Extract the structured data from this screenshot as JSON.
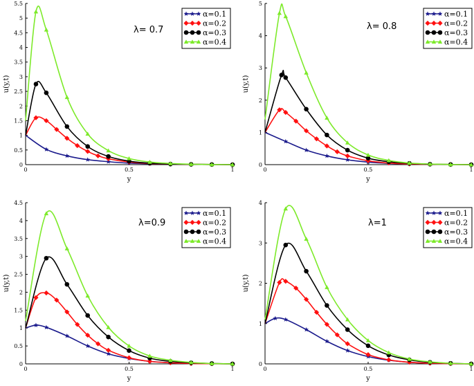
{
  "alpha_prefix": "α=",
  "series_names": [
    "α=0.1",
    "α=0.2",
    "α=0.3",
    "α=0.4"
  ],
  "series_colors": [
    "#1a1a8c",
    "#ff1010",
    "#000000",
    "#7dea2a"
  ],
  "marker_types": [
    "star",
    "diamond",
    "circle",
    "triangle"
  ],
  "chart_data": [
    {
      "type": "line",
      "title": "λ= 0.7",
      "xlabel": "y",
      "ylabel": "u(y,t)",
      "xlim": [
        0,
        1
      ],
      "ylim": [
        0,
        5.5
      ],
      "xticks": [
        "0",
        "0.5",
        "1"
      ],
      "yticks": [
        "0",
        "0.5",
        "1",
        "1.5",
        "2",
        "2.5",
        "3",
        "3.5",
        "4",
        "4.5",
        "5",
        "5.5"
      ],
      "legend_position": "top-right",
      "series": [
        {
          "name": "α=0.1",
          "x": [
            0,
            0.1,
            0.2,
            0.3,
            0.4,
            0.5,
            0.6,
            0.7,
            0.8,
            0.9,
            1.0
          ],
          "y": [
            1.0,
            0.52,
            0.3,
            0.17,
            0.1,
            0.05,
            0.03,
            0.015,
            0.01,
            0.005,
            0.0
          ]
        },
        {
          "name": "α=0.2",
          "x": [
            0,
            0.05,
            0.1,
            0.15,
            0.2,
            0.25,
            0.3,
            0.35,
            0.4,
            0.5,
            0.6,
            0.7,
            0.8,
            0.9,
            1.0
          ],
          "y": [
            1.0,
            1.6,
            1.5,
            1.2,
            0.9,
            0.65,
            0.45,
            0.3,
            0.2,
            0.09,
            0.04,
            0.02,
            0.01,
            0.005,
            0.0
          ]
        },
        {
          "name": "α=0.3",
          "x": [
            0,
            0.05,
            0.1,
            0.2,
            0.3,
            0.4,
            0.5,
            0.6,
            0.7,
            0.8,
            0.9,
            1.0
          ],
          "y": [
            1.0,
            2.75,
            2.45,
            1.3,
            0.62,
            0.28,
            0.12,
            0.05,
            0.02,
            0.01,
            0.005,
            0.0
          ]
        },
        {
          "name": "α=0.4",
          "x": [
            0,
            0.05,
            0.1,
            0.2,
            0.3,
            0.4,
            0.5,
            0.6,
            0.7,
            0.8,
            0.9,
            1.0
          ],
          "y": [
            1.5,
            5.22,
            4.6,
            2.3,
            1.05,
            0.48,
            0.21,
            0.09,
            0.04,
            0.015,
            0.005,
            0.0
          ]
        }
      ]
    },
    {
      "type": "line",
      "title": "λ= 0.8",
      "xlabel": "y",
      "ylabel": "u(y,t)",
      "xlim": [
        0,
        1
      ],
      "ylim": [
        0,
        5
      ],
      "xticks": [
        "0",
        "0.5",
        "1"
      ],
      "yticks": [
        "0",
        "1",
        "2",
        "3",
        "4",
        "5"
      ],
      "legend_position": "top-right",
      "series": [
        {
          "name": "α=0.1",
          "x": [
            0,
            0.1,
            0.2,
            0.3,
            0.4,
            0.5,
            0.6,
            0.7,
            0.8,
            0.9,
            1.0
          ],
          "y": [
            1.0,
            0.72,
            0.45,
            0.27,
            0.15,
            0.08,
            0.04,
            0.02,
            0.01,
            0.005,
            0.0
          ]
        },
        {
          "name": "α=0.2",
          "x": [
            0,
            0.07,
            0.1,
            0.15,
            0.2,
            0.25,
            0.3,
            0.35,
            0.4,
            0.5,
            0.6,
            0.7,
            0.8,
            0.9,
            1.0
          ],
          "y": [
            1.0,
            1.7,
            1.62,
            1.35,
            1.05,
            0.8,
            0.58,
            0.4,
            0.27,
            0.12,
            0.05,
            0.02,
            0.01,
            0.005,
            0.0
          ]
        },
        {
          "name": "α=0.3",
          "x": [
            0,
            0.08,
            0.1,
            0.2,
            0.3,
            0.4,
            0.5,
            0.6,
            0.7,
            0.8,
            0.9,
            1.0
          ],
          "y": [
            1.0,
            2.78,
            2.7,
            1.72,
            0.92,
            0.45,
            0.2,
            0.09,
            0.04,
            0.015,
            0.005,
            0.0
          ]
        },
        {
          "name": "α=0.4",
          "x": [
            0,
            0.07,
            0.1,
            0.2,
            0.3,
            0.4,
            0.5,
            0.6,
            0.7,
            0.8,
            0.9,
            1.0
          ],
          "y": [
            1.4,
            4.7,
            4.6,
            2.85,
            1.45,
            0.68,
            0.3,
            0.13,
            0.05,
            0.02,
            0.005,
            0.0
          ]
        }
      ]
    },
    {
      "type": "line",
      "title": "λ=0.9",
      "xlabel": "y",
      "ylabel": "u(y,t)",
      "xlim": [
        0,
        1
      ],
      "ylim": [
        0,
        4.5
      ],
      "xticks": [
        "0",
        "0.5",
        "1"
      ],
      "yticks": [
        "0",
        "0.5",
        "1",
        "1.5",
        "2",
        "2.5",
        "3",
        "3.5",
        "4",
        "4.5"
      ],
      "legend_position": "top-right",
      "series": [
        {
          "name": "α=0.1",
          "x": [
            0,
            0.05,
            0.1,
            0.2,
            0.3,
            0.4,
            0.5,
            0.6,
            0.7,
            0.8,
            0.9,
            1.0
          ],
          "y": [
            1.0,
            1.08,
            1.02,
            0.78,
            0.5,
            0.28,
            0.15,
            0.07,
            0.03,
            0.01,
            0.005,
            0.0
          ]
        },
        {
          "name": "α=0.2",
          "x": [
            0,
            0.05,
            0.1,
            0.15,
            0.2,
            0.25,
            0.3,
            0.35,
            0.4,
            0.5,
            0.6,
            0.7,
            0.8,
            0.9,
            1.0
          ],
          "y": [
            1.0,
            1.85,
            1.98,
            1.78,
            1.45,
            1.1,
            0.8,
            0.56,
            0.38,
            0.17,
            0.07,
            0.03,
            0.01,
            0.005,
            0.0
          ]
        },
        {
          "name": "α=0.3",
          "x": [
            0,
            0.1,
            0.2,
            0.3,
            0.4,
            0.5,
            0.6,
            0.7,
            0.8,
            0.9,
            1.0
          ],
          "y": [
            1.0,
            2.95,
            2.22,
            1.35,
            0.75,
            0.37,
            0.16,
            0.07,
            0.03,
            0.01,
            0.0
          ]
        },
        {
          "name": "α=0.4",
          "x": [
            0,
            0.1,
            0.2,
            0.3,
            0.4,
            0.5,
            0.6,
            0.7,
            0.8,
            0.9,
            1.0
          ],
          "y": [
            1.2,
            4.2,
            3.22,
            1.9,
            1.02,
            0.5,
            0.22,
            0.1,
            0.04,
            0.01,
            0.0
          ]
        }
      ]
    },
    {
      "type": "line",
      "title": "λ=1",
      "xlabel": "y",
      "ylabel": "u(y,t)",
      "xlim": [
        0,
        1
      ],
      "ylim": [
        0,
        4
      ],
      "xticks": [
        "0",
        "0.5",
        "1"
      ],
      "yticks": [
        "0",
        "1",
        "2",
        "3",
        "4"
      ],
      "legend_position": "top-right",
      "series": [
        {
          "name": "α=0.1",
          "x": [
            0,
            0.05,
            0.1,
            0.2,
            0.3,
            0.4,
            0.5,
            0.6,
            0.7,
            0.8,
            0.9,
            1.0
          ],
          "y": [
            1.0,
            1.13,
            1.1,
            0.85,
            0.56,
            0.33,
            0.18,
            0.09,
            0.04,
            0.015,
            0.005,
            0.0
          ]
        },
        {
          "name": "α=0.2",
          "x": [
            0,
            0.07,
            0.1,
            0.15,
            0.2,
            0.25,
            0.3,
            0.35,
            0.4,
            0.5,
            0.6,
            0.7,
            0.8,
            0.9,
            1.0
          ],
          "y": [
            1.0,
            2.02,
            2.05,
            1.88,
            1.6,
            1.28,
            0.98,
            0.72,
            0.5,
            0.23,
            0.1,
            0.04,
            0.015,
            0.005,
            0.0
          ]
        },
        {
          "name": "α=0.3",
          "x": [
            0,
            0.1,
            0.2,
            0.3,
            0.4,
            0.5,
            0.6,
            0.7,
            0.8,
            0.9,
            1.0
          ],
          "y": [
            1.0,
            2.95,
            2.3,
            1.45,
            0.85,
            0.45,
            0.22,
            0.1,
            0.04,
            0.015,
            0.0
          ]
        },
        {
          "name": "α=0.4",
          "x": [
            0,
            0.1,
            0.2,
            0.3,
            0.4,
            0.5,
            0.6,
            0.7,
            0.8,
            0.9,
            1.0
          ],
          "y": [
            1.1,
            3.85,
            3.1,
            1.9,
            1.1,
            0.58,
            0.28,
            0.12,
            0.05,
            0.015,
            0.0
          ]
        }
      ]
    }
  ]
}
